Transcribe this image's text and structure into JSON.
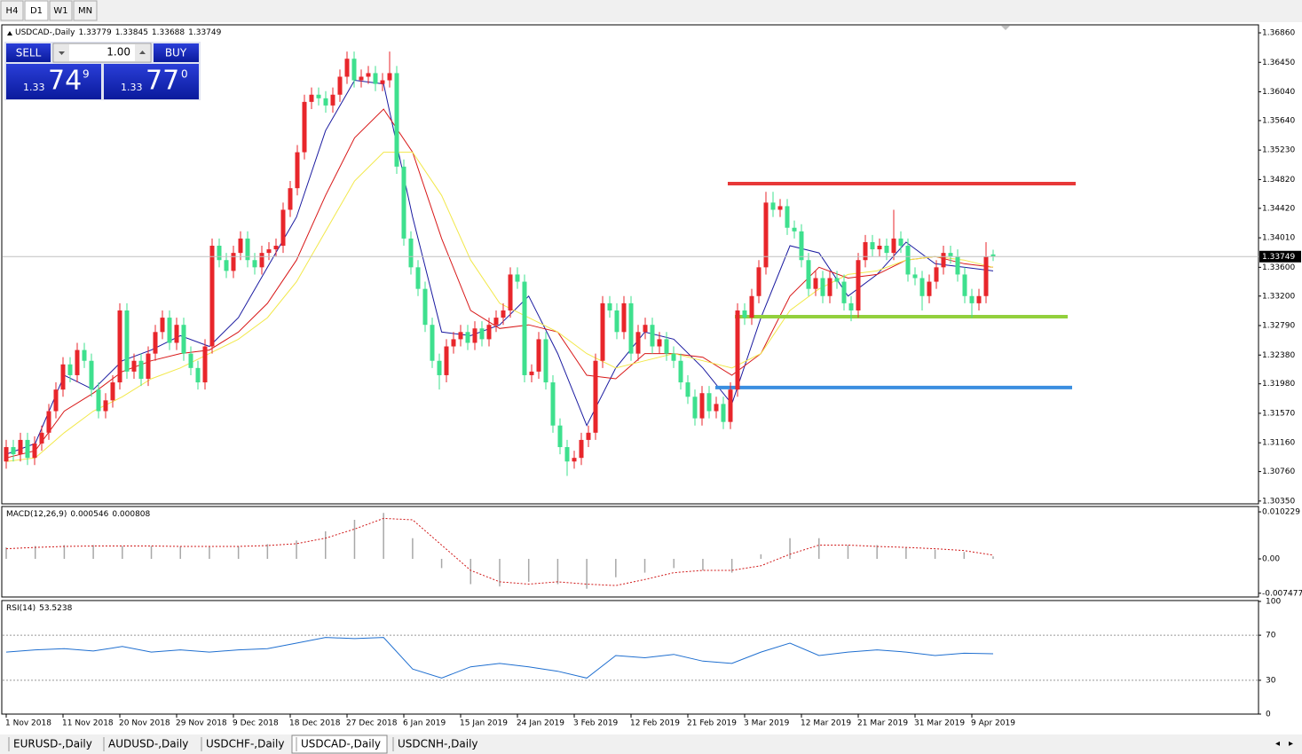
{
  "toolbar": [
    "H4",
    "D1",
    "W1",
    "MN"
  ],
  "trade": {
    "sell": "SELL",
    "buy": "BUY",
    "lot": "1.00",
    "bid_big": "1.33",
    "bid_pips": "74",
    "bid_frac": "9",
    "ask_big": "1.33",
    "ask_pips": "77",
    "ask_frac": "0"
  },
  "tabs": [
    "EURUSD-,Daily",
    "AUDUSD-,Daily",
    "USDCHF-,Daily",
    "USDCAD-,Daily",
    "USDCNH-,Daily"
  ],
  "chart_data": [
    {
      "type": "candlestick",
      "title": "USDCAD-,Daily",
      "up_color": "#e8262b",
      "down_color": "#3ee08e",
      "grid": false,
      "categories": [
        "1 Nov 2018",
        null,
        null,
        null,
        null,
        null,
        null,
        null,
        "11 Nov 2018",
        null,
        null,
        null,
        null,
        null,
        null,
        null,
        "20 Nov 2018",
        null,
        null,
        null,
        null,
        null,
        null,
        null,
        "29 Nov 2018",
        null,
        null,
        null,
        null,
        null,
        null,
        null,
        "9 Dec 2018",
        null,
        null,
        null,
        null,
        null,
        null,
        null,
        "18 Dec 2018",
        null,
        null,
        null,
        null,
        null,
        null,
        null,
        "27 Dec 2018",
        null,
        null,
        null,
        null,
        null,
        null,
        null,
        "6 Jan 2019",
        null,
        null,
        null,
        null,
        null,
        null,
        null,
        "15 Jan 2019",
        null,
        null,
        null,
        null,
        null,
        null,
        null,
        "24 Jan 2019",
        null,
        null,
        null,
        null,
        null,
        null,
        null,
        "3 Feb 2019",
        null,
        null,
        null,
        null,
        null,
        null,
        null,
        "12 Feb 2019",
        null,
        null,
        null,
        null,
        null,
        null,
        null,
        "21 Feb 2019",
        null,
        null,
        null,
        null,
        null,
        null,
        null,
        "3 Mar 2019",
        null,
        null,
        null,
        null,
        null,
        null,
        null,
        "12 Mar 2019",
        null,
        null,
        null,
        null,
        null,
        null,
        null,
        "21 Mar 2019",
        null,
        null,
        null,
        null,
        null,
        null,
        null,
        "31 Mar 2019",
        null,
        null,
        null,
        null,
        null,
        null,
        null,
        "9 Apr 2019",
        null,
        null,
        null
      ],
      "open": [
        1.309,
        1.311,
        1.31,
        1.312,
        1.3095,
        1.3115,
        1.313,
        1.316,
        1.319,
        1.3225,
        1.321,
        1.3245,
        1.323,
        1.319,
        1.316,
        1.3175,
        1.32,
        1.33,
        1.3215,
        1.323,
        1.3205,
        1.324,
        1.327,
        1.329,
        1.3255,
        1.328,
        1.324,
        1.322,
        1.32,
        1.325,
        1.339,
        1.337,
        1.3355,
        1.338,
        1.34,
        1.337,
        1.336,
        1.338,
        1.3385,
        1.339,
        1.344,
        1.347,
        1.352,
        1.359,
        1.36,
        1.3595,
        1.3585,
        1.36,
        1.3625,
        1.365,
        1.362,
        1.3625,
        1.363,
        1.3615,
        1.362,
        1.363,
        1.35,
        1.34,
        1.336,
        1.333,
        1.328,
        1.323,
        1.321,
        1.325,
        1.326,
        1.327,
        1.3255,
        1.3275,
        1.326,
        1.328,
        1.329,
        1.33,
        1.335,
        1.334,
        1.321,
        1.3215,
        1.326,
        1.32,
        1.314,
        1.311,
        1.309,
        1.3095,
        1.312,
        1.313,
        1.323,
        1.331,
        1.33,
        1.327,
        1.331,
        1.324,
        1.327,
        1.328,
        1.325,
        1.326,
        1.324,
        1.323,
        1.32,
        1.318,
        1.315,
        1.3185,
        1.316,
        1.317,
        1.3145,
        1.319,
        1.33,
        1.329,
        1.332,
        1.336,
        1.345,
        1.344,
        1.3445,
        1.3415,
        1.341,
        1.337,
        1.333,
        1.3345,
        1.332,
        1.3345,
        1.334,
        1.331,
        1.33,
        1.337,
        1.3395,
        1.3385,
        1.339,
        1.338,
        1.34,
        1.339,
        1.335,
        1.3345,
        1.332,
        1.334,
        1.336,
        1.338,
        1.3375,
        1.335,
        1.332,
        1.331,
        1.332,
        1.33779
      ],
      "high": [
        1.312,
        1.312,
        1.313,
        1.313,
        1.3125,
        1.314,
        1.317,
        1.32,
        1.3235,
        1.3235,
        1.3255,
        1.3255,
        1.324,
        1.32,
        1.3185,
        1.321,
        1.331,
        1.331,
        1.324,
        1.324,
        1.325,
        1.328,
        1.33,
        1.33,
        1.329,
        1.329,
        1.325,
        1.323,
        1.326,
        1.34,
        1.34,
        1.338,
        1.339,
        1.341,
        1.341,
        1.338,
        1.339,
        1.3395,
        1.34,
        1.345,
        1.348,
        1.353,
        1.36,
        1.361,
        1.361,
        1.3605,
        1.361,
        1.3635,
        1.366,
        1.366,
        1.3635,
        1.364,
        1.364,
        1.363,
        1.366,
        1.364,
        1.351,
        1.341,
        1.337,
        1.334,
        1.329,
        1.324,
        1.326,
        1.327,
        1.328,
        1.328,
        1.3285,
        1.3285,
        1.329,
        1.33,
        1.331,
        1.336,
        1.336,
        1.335,
        1.3225,
        1.327,
        1.327,
        1.321,
        1.315,
        1.312,
        1.3105,
        1.313,
        1.314,
        1.324,
        1.332,
        1.332,
        1.331,
        1.332,
        1.332,
        1.328,
        1.329,
        1.329,
        1.327,
        1.327,
        1.325,
        1.324,
        1.321,
        1.319,
        1.3195,
        1.3195,
        1.318,
        1.318,
        1.32,
        1.331,
        1.331,
        1.333,
        1.337,
        1.3465,
        1.3465,
        1.3455,
        1.3455,
        1.3425,
        1.342,
        1.338,
        1.3355,
        1.3355,
        1.3355,
        1.3355,
        1.335,
        1.332,
        1.338,
        1.3405,
        1.3405,
        1.34,
        1.34,
        1.344,
        1.341,
        1.34,
        1.336,
        1.3355,
        1.335,
        1.337,
        1.339,
        1.339,
        1.3385,
        1.336,
        1.333,
        1.333,
        1.3395,
        1.33845
      ],
      "low": [
        1.308,
        1.309,
        1.309,
        1.3085,
        1.3085,
        1.3105,
        1.312,
        1.315,
        1.318,
        1.32,
        1.32,
        1.322,
        1.318,
        1.315,
        1.315,
        1.3165,
        1.319,
        1.3205,
        1.3205,
        1.3195,
        1.3195,
        1.323,
        1.326,
        1.3245,
        1.3245,
        1.323,
        1.321,
        1.319,
        1.319,
        1.324,
        1.336,
        1.3345,
        1.3345,
        1.337,
        1.336,
        1.335,
        1.335,
        1.337,
        1.3375,
        1.338,
        1.343,
        1.346,
        1.351,
        1.358,
        1.3585,
        1.3575,
        1.3575,
        1.359,
        1.3615,
        1.361,
        1.361,
        1.3615,
        1.3605,
        1.3605,
        1.361,
        1.349,
        1.339,
        1.335,
        1.332,
        1.327,
        1.322,
        1.319,
        1.32,
        1.324,
        1.325,
        1.3245,
        1.3245,
        1.325,
        1.325,
        1.327,
        1.328,
        1.329,
        1.333,
        1.32,
        1.32,
        1.3205,
        1.319,
        1.313,
        1.31,
        1.307,
        1.308,
        1.3085,
        1.311,
        1.312,
        1.322,
        1.329,
        1.326,
        1.326,
        1.323,
        1.323,
        1.326,
        1.324,
        1.324,
        1.323,
        1.322,
        1.319,
        1.317,
        1.314,
        1.314,
        1.315,
        1.315,
        1.3135,
        1.3135,
        1.318,
        1.328,
        1.328,
        1.331,
        1.335,
        1.343,
        1.343,
        1.3405,
        1.34,
        1.336,
        1.332,
        1.332,
        1.331,
        1.331,
        1.333,
        1.33,
        1.3285,
        1.329,
        1.336,
        1.3375,
        1.3375,
        1.337,
        1.337,
        1.338,
        1.334,
        1.3335,
        1.33,
        1.331,
        1.333,
        1.335,
        1.3365,
        1.334,
        1.331,
        1.329,
        1.33,
        1.331,
        1.33688
      ],
      "close": [
        1.311,
        1.31,
        1.312,
        1.3095,
        1.3115,
        1.313,
        1.316,
        1.319,
        1.3225,
        1.321,
        1.3245,
        1.323,
        1.319,
        1.316,
        1.3175,
        1.32,
        1.33,
        1.3215,
        1.323,
        1.3205,
        1.324,
        1.327,
        1.329,
        1.3255,
        1.328,
        1.324,
        1.322,
        1.32,
        1.325,
        1.339,
        1.337,
        1.3355,
        1.338,
        1.34,
        1.337,
        1.336,
        1.338,
        1.3385,
        1.339,
        1.344,
        1.347,
        1.352,
        1.359,
        1.36,
        1.3595,
        1.3585,
        1.36,
        1.3625,
        1.365,
        1.362,
        1.3625,
        1.363,
        1.3615,
        1.362,
        1.363,
        1.35,
        1.34,
        1.336,
        1.333,
        1.328,
        1.323,
        1.321,
        1.325,
        1.326,
        1.327,
        1.3255,
        1.3275,
        1.326,
        1.328,
        1.329,
        1.33,
        1.335,
        1.334,
        1.321,
        1.3215,
        1.326,
        1.32,
        1.314,
        1.311,
        1.309,
        1.3095,
        1.312,
        1.313,
        1.323,
        1.331,
        1.33,
        1.327,
        1.331,
        1.324,
        1.327,
        1.328,
        1.325,
        1.326,
        1.324,
        1.323,
        1.32,
        1.318,
        1.315,
        1.3185,
        1.316,
        1.317,
        1.3145,
        1.319,
        1.33,
        1.329,
        1.332,
        1.336,
        1.345,
        1.344,
        1.3445,
        1.3415,
        1.341,
        1.337,
        1.333,
        1.3345,
        1.332,
        1.3345,
        1.334,
        1.331,
        1.33,
        1.337,
        1.3395,
        1.3385,
        1.339,
        1.338,
        1.34,
        1.339,
        1.335,
        1.3345,
        1.332,
        1.334,
        1.336,
        1.338,
        1.3375,
        1.335,
        1.332,
        1.331,
        1.332,
        1.3375,
        1.33749
      ],
      "ma": [
        {
          "color": "#1a1aa0",
          "values": [
            1.31,
            1.3115,
            1.321,
            1.319,
            1.323,
            1.3245,
            1.3265,
            1.325,
            1.329,
            1.336,
            1.343,
            1.355,
            1.362,
            1.3615,
            1.343,
            1.327,
            1.3265,
            1.328,
            1.332,
            1.324,
            1.314,
            1.322,
            1.327,
            1.326,
            1.322,
            1.317,
            1.329,
            1.339,
            1.338,
            1.332,
            1.335,
            1.3395,
            1.3365,
            1.336,
            1.3355
          ]
        },
        {
          "color": "#d81818",
          "values": [
            1.3095,
            1.3105,
            1.316,
            1.3185,
            1.3215,
            1.323,
            1.324,
            1.3245,
            1.327,
            1.331,
            1.337,
            1.346,
            1.354,
            1.358,
            1.352,
            1.34,
            1.33,
            1.3275,
            1.328,
            1.327,
            1.321,
            1.3205,
            1.324,
            1.324,
            1.3235,
            1.321,
            1.324,
            1.332,
            1.336,
            1.3345,
            1.335,
            1.337,
            1.3375,
            1.3365,
            1.336
          ]
        },
        {
          "color": "#f2e84a",
          "values": [
            1.309,
            1.3095,
            1.313,
            1.316,
            1.318,
            1.3205,
            1.322,
            1.324,
            1.326,
            1.329,
            1.334,
            1.341,
            1.348,
            1.352,
            1.352,
            1.346,
            1.337,
            1.331,
            1.329,
            1.327,
            1.324,
            1.322,
            1.323,
            1.324,
            1.323,
            1.322,
            1.324,
            1.33,
            1.333,
            1.335,
            1.3355,
            1.337,
            1.3375,
            1.337,
            1.336
          ]
        }
      ],
      "hlines": [
        {
          "value": 1.34764,
          "color": "#e83838"
        },
        {
          "value": 1.32914,
          "color": "#92d03c"
        },
        {
          "value": 1.31928,
          "color": "#3a8ee0"
        }
      ],
      "ylim": [
        1.30311,
        1.36959
      ],
      "yticks": [
        {
          "value": 1.3686,
          "label": "1.36860"
        },
        {
          "value": 1.3645,
          "label": "1.36450"
        },
        {
          "value": 1.3604,
          "label": "1.36040"
        },
        {
          "value": 1.3564,
          "label": "1.35640"
        },
        {
          "value": 1.3523,
          "label": "1.35230"
        },
        {
          "value": 1.3482,
          "label": "1.34820"
        },
        {
          "value": 1.3442,
          "label": "1.34420"
        },
        {
          "value": 1.3401,
          "label": "1.34010"
        },
        {
          "value": 1.336,
          "label": "1.33600"
        },
        {
          "value": 1.332,
          "label": "1.33200"
        },
        {
          "value": 1.3279,
          "label": "1.32790"
        },
        {
          "value": 1.3238,
          "label": "1.32380"
        },
        {
          "value": 1.3198,
          "label": "1.31980"
        },
        {
          "value": 1.3157,
          "label": "1.31570"
        },
        {
          "value": 1.3116,
          "label": "1.31160"
        },
        {
          "value": 1.3076,
          "label": "1.30760"
        },
        {
          "value": 1.3035,
          "label": "1.30350"
        }
      ]
    },
    {
      "type": "macd",
      "title": "MACD(12,26,9)",
      "ylim": [
        -0.0081,
        0.0112
      ],
      "yticks": [
        0.010229,
        {
          "value": 0,
          "label": "0.00"
        },
        -0.007477
      ],
      "series": [
        {
          "color": "#a8a8a8",
          "values": [
            0.0025,
            0.0028,
            0.003,
            0.003,
            0.0028,
            0.0028,
            0.0027,
            0.0026,
            0.0028,
            0.0032,
            0.004,
            0.006,
            0.0085,
            0.01,
            0.0045,
            -0.002,
            -0.0055,
            -0.006,
            -0.005,
            -0.0055,
            -0.0065,
            -0.004,
            -0.003,
            -0.002,
            -0.0025,
            -0.003,
            0.001,
            0.0045,
            0.0045,
            0.003,
            0.003,
            0.0025,
            0.002,
            0.0015,
            0.000546
          ]
        },
        {
          "color": "#d01818",
          "values": [
            0.0022,
            0.0025,
            0.0027,
            0.0028,
            0.0028,
            0.0028,
            0.0027,
            0.0027,
            0.0027,
            0.0029,
            0.0033,
            0.0045,
            0.0065,
            0.0088,
            0.0085,
            0.003,
            -0.0025,
            -0.005,
            -0.0055,
            -0.005,
            -0.0055,
            -0.0058,
            -0.0045,
            -0.003,
            -0.0025,
            -0.0025,
            -0.0015,
            0.001,
            0.003,
            0.003,
            0.0027,
            0.0025,
            0.0022,
            0.0018,
            0.000808
          ]
        }
      ]
    },
    {
      "type": "line",
      "title": "RSI(14)",
      "color": "#1f6fd0",
      "ylim": [
        0,
        100
      ],
      "yticks": [
        100,
        70,
        30,
        0
      ],
      "values": [
        55,
        57,
        58,
        56,
        60,
        55,
        57,
        55,
        57,
        58,
        63,
        68,
        67,
        68,
        40,
        32,
        42,
        45,
        42,
        38,
        32,
        52,
        50,
        53,
        47,
        45,
        55,
        63,
        52,
        55,
        57,
        55,
        52,
        54,
        53.5238
      ]
    }
  ]
}
